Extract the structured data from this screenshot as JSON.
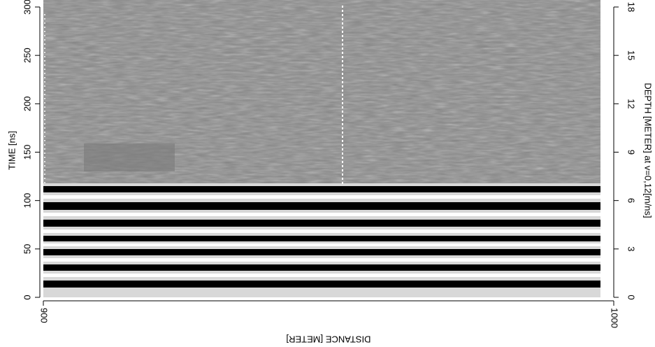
{
  "chart_data": {
    "type": "radargram",
    "xlabel": "DISTANCE [METER]",
    "ylabel": "TIME [ns]",
    "y2label": "DEPTH [METER] at v=0,12[m/ns]",
    "xlim": [
      900,
      1000
    ],
    "xticks": [
      900,
      1000
    ],
    "ylim": [
      0,
      300
    ],
    "yticks": [
      0,
      50,
      100,
      150,
      200,
      250,
      300
    ],
    "y2lim": [
      0,
      18
    ],
    "y2ticks": [
      0,
      3,
      6,
      9,
      12,
      15,
      18
    ]
  }
}
